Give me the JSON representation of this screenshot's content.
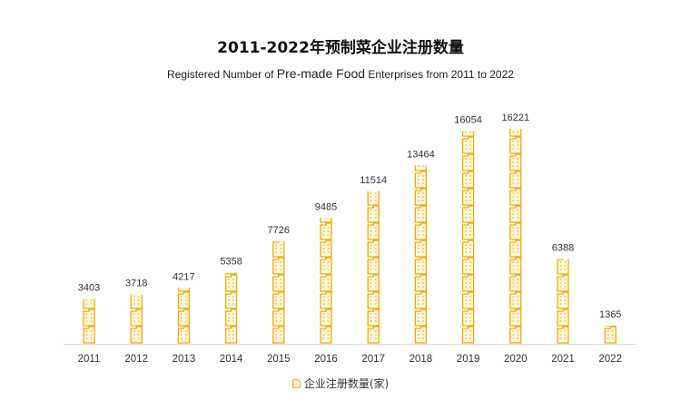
{
  "header": {
    "title": "2011-2022年预制菜企业注册数量",
    "subtitle_pre": "Registered Number of ",
    "subtitle_big": "Pre-made Food",
    "subtitle_post": " Enterprises from 2011 to 2022"
  },
  "legend": {
    "label": "企业注册数量(家)"
  },
  "colors": {
    "icon": "#f2a900",
    "icon_fill": "#fff7e0",
    "axis": "#d9d9d9",
    "label": "#333333"
  },
  "chart_data": {
    "type": "bar",
    "title": "2011-2022年预制菜企业注册数量",
    "subtitle": "Registered Number of Pre-made Food Enterprises from 2011 to 2022",
    "categories": [
      "2011",
      "2012",
      "2013",
      "2014",
      "2015",
      "2016",
      "2017",
      "2018",
      "2019",
      "2020",
      "2021",
      "2022"
    ],
    "series": [
      {
        "name": "企业注册数量(家)",
        "values": [
          3403,
          3718,
          4217,
          5358,
          7726,
          9485,
          11514,
          13464,
          16054,
          16221,
          6388,
          1365
        ]
      }
    ],
    "ylim": [
      0,
      16221
    ],
    "icon": "building-icon",
    "grid": false
  }
}
